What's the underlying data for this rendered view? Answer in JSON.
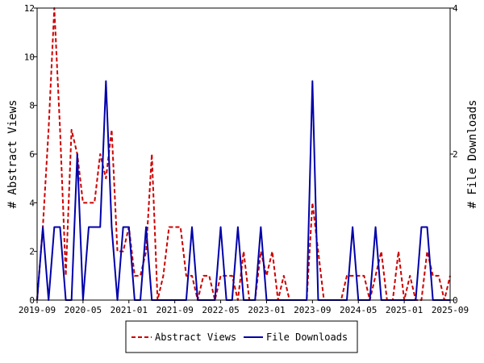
{
  "chart_data": {
    "type": "line",
    "ylabel_left": "# Abstract Views",
    "ylabel_right": "# File Downloads",
    "ylim_left": [
      0,
      12
    ],
    "ylim_right": [
      0,
      4
    ],
    "yticks_left": [
      "0",
      "2",
      "4",
      "6",
      "8",
      "10",
      "12"
    ],
    "yticks_right": [
      "0",
      "2",
      "4"
    ],
    "xlim": [
      "2019-09",
      "2025-09"
    ],
    "xticks": [
      "2019-09",
      "2020-05",
      "2021-01",
      "2021-09",
      "2022-05",
      "2023-01",
      "2023-09",
      "2024-05",
      "2025-01",
      "2025-09"
    ],
    "grid": false,
    "legend": "bottom-center",
    "colors": {
      "abstract_views": "#cc0000",
      "file_downloads": "#0000aa"
    },
    "series": [
      {
        "name": "Abstract Views",
        "axis": "left",
        "style": "dashed",
        "values": [
          [
            "2019-09",
            0
          ],
          [
            "2019-10",
            3
          ],
          [
            "2019-11",
            7
          ],
          [
            "2019-12",
            12
          ],
          [
            "2020-01",
            7
          ],
          [
            "2020-02",
            1
          ],
          [
            "2020-03",
            7
          ],
          [
            "2020-04",
            6
          ],
          [
            "2020-05",
            4
          ],
          [
            "2020-06",
            4
          ],
          [
            "2020-07",
            4
          ],
          [
            "2020-08",
            6
          ],
          [
            "2020-09",
            5
          ],
          [
            "2020-10",
            7
          ],
          [
            "2020-11",
            2
          ],
          [
            "2020-12",
            2
          ],
          [
            "2021-01",
            3
          ],
          [
            "2021-02",
            1
          ],
          [
            "2021-03",
            1
          ],
          [
            "2021-04",
            2
          ],
          [
            "2021-05",
            6
          ],
          [
            "2021-06",
            0
          ],
          [
            "2021-07",
            1
          ],
          [
            "2021-08",
            3
          ],
          [
            "2021-09",
            3
          ],
          [
            "2021-10",
            3
          ],
          [
            "2021-11",
            1
          ],
          [
            "2021-12",
            1
          ],
          [
            "2022-01",
            0
          ],
          [
            "2022-02",
            1
          ],
          [
            "2022-03",
            1
          ],
          [
            "2022-04",
            0
          ],
          [
            "2022-05",
            1
          ],
          [
            "2022-06",
            1
          ],
          [
            "2022-07",
            1
          ],
          [
            "2022-08",
            0
          ],
          [
            "2022-09",
            2
          ],
          [
            "2022-10",
            0
          ],
          [
            "2022-11",
            0
          ],
          [
            "2022-12",
            2
          ],
          [
            "2023-01",
            1
          ],
          [
            "2023-02",
            2
          ],
          [
            "2023-03",
            0
          ],
          [
            "2023-04",
            1
          ],
          [
            "2023-05",
            0
          ],
          [
            "2023-06",
            0
          ],
          [
            "2023-07",
            0
          ],
          [
            "2023-08",
            0
          ],
          [
            "2023-09",
            4
          ],
          [
            "2023-10",
            2
          ],
          [
            "2023-11",
            0
          ],
          [
            "2023-12",
            0
          ],
          [
            "2024-01",
            0
          ],
          [
            "2024-02",
            0
          ],
          [
            "2024-03",
            1
          ],
          [
            "2024-04",
            1
          ],
          [
            "2024-05",
            1
          ],
          [
            "2024-06",
            1
          ],
          [
            "2024-07",
            0
          ],
          [
            "2024-08",
            1
          ],
          [
            "2024-09",
            2
          ],
          [
            "2024-10",
            0
          ],
          [
            "2024-11",
            0
          ],
          [
            "2024-12",
            2
          ],
          [
            "2025-01",
            0
          ],
          [
            "2025-02",
            1
          ],
          [
            "2025-03",
            0
          ],
          [
            "2025-04",
            0
          ],
          [
            "2025-05",
            2
          ],
          [
            "2025-06",
            1
          ],
          [
            "2025-07",
            1
          ],
          [
            "2025-08",
            0
          ],
          [
            "2025-09",
            1
          ]
        ]
      },
      {
        "name": "File Downloads",
        "axis": "right",
        "style": "solid",
        "values": [
          [
            "2019-09",
            0
          ],
          [
            "2019-10",
            1
          ],
          [
            "2019-11",
            0
          ],
          [
            "2019-12",
            1
          ],
          [
            "2020-01",
            1
          ],
          [
            "2020-02",
            0
          ],
          [
            "2020-03",
            0
          ],
          [
            "2020-04",
            2
          ],
          [
            "2020-05",
            0
          ],
          [
            "2020-06",
            1
          ],
          [
            "2020-07",
            1
          ],
          [
            "2020-08",
            1
          ],
          [
            "2020-09",
            3
          ],
          [
            "2020-10",
            1
          ],
          [
            "2020-11",
            0
          ],
          [
            "2020-12",
            1
          ],
          [
            "2021-01",
            1
          ],
          [
            "2021-02",
            0
          ],
          [
            "2021-03",
            0
          ],
          [
            "2021-04",
            1
          ],
          [
            "2021-05",
            0
          ],
          [
            "2021-06",
            0
          ],
          [
            "2021-07",
            0
          ],
          [
            "2021-08",
            0
          ],
          [
            "2021-09",
            0
          ],
          [
            "2021-10",
            0
          ],
          [
            "2021-11",
            0
          ],
          [
            "2021-12",
            1
          ],
          [
            "2022-01",
            0
          ],
          [
            "2022-02",
            0
          ],
          [
            "2022-03",
            0
          ],
          [
            "2022-04",
            0
          ],
          [
            "2022-05",
            1
          ],
          [
            "2022-06",
            0
          ],
          [
            "2022-07",
            0
          ],
          [
            "2022-08",
            1
          ],
          [
            "2022-09",
            0
          ],
          [
            "2022-10",
            0
          ],
          [
            "2022-11",
            0
          ],
          [
            "2022-12",
            1
          ],
          [
            "2023-01",
            0
          ],
          [
            "2023-02",
            0
          ],
          [
            "2023-03",
            0
          ],
          [
            "2023-04",
            0
          ],
          [
            "2023-05",
            0
          ],
          [
            "2023-06",
            0
          ],
          [
            "2023-07",
            0
          ],
          [
            "2023-08",
            0
          ],
          [
            "2023-09",
            3
          ],
          [
            "2023-10",
            0
          ],
          [
            "2023-11",
            0
          ],
          [
            "2023-12",
            0
          ],
          [
            "2024-01",
            0
          ],
          [
            "2024-02",
            0
          ],
          [
            "2024-03",
            0
          ],
          [
            "2024-04",
            1
          ],
          [
            "2024-05",
            0
          ],
          [
            "2024-06",
            0
          ],
          [
            "2024-07",
            0
          ],
          [
            "2024-08",
            1
          ],
          [
            "2024-09",
            0
          ],
          [
            "2024-10",
            0
          ],
          [
            "2024-11",
            0
          ],
          [
            "2024-12",
            0
          ],
          [
            "2025-01",
            0
          ],
          [
            "2025-02",
            0
          ],
          [
            "2025-03",
            0
          ],
          [
            "2025-04",
            1
          ],
          [
            "2025-05",
            1
          ],
          [
            "2025-06",
            0
          ],
          [
            "2025-07",
            0
          ],
          [
            "2025-08",
            0
          ],
          [
            "2025-09",
            0
          ]
        ]
      }
    ]
  }
}
